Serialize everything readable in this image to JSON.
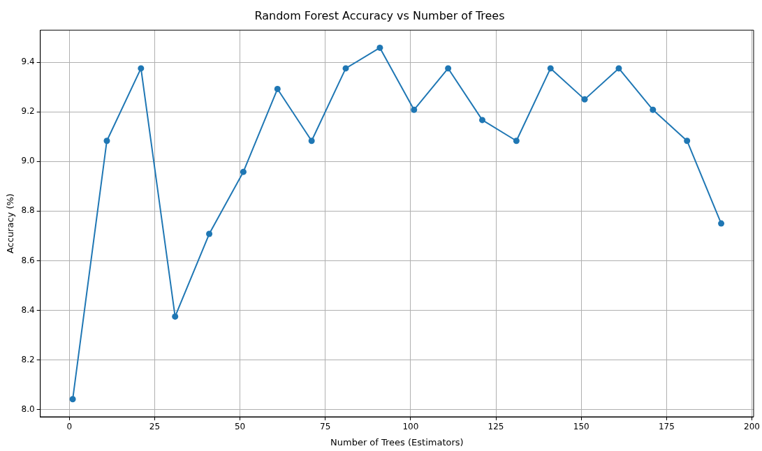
{
  "chart_data": {
    "type": "line",
    "title": "Random Forest Accuracy vs Number of Trees",
    "xlabel": "Number of Trees (Estimators)",
    "ylabel": "Accuracy (%)",
    "x": [
      1,
      11,
      21,
      31,
      41,
      51,
      61,
      71,
      81,
      91,
      101,
      111,
      121,
      131,
      141,
      151,
      161,
      171,
      181,
      191
    ],
    "series": [
      {
        "color": "#1f77b4",
        "values": [
          8.042,
          9.083,
          9.375,
          8.375,
          8.708,
          8.958,
          9.292,
          9.083,
          9.375,
          9.458,
          9.208,
          9.375,
          9.167,
          9.083,
          9.375,
          9.25,
          9.375,
          9.208,
          9.083,
          8.75
        ]
      }
    ],
    "xlim": [
      -8.5,
      200.5
    ],
    "ylim": [
      7.971,
      9.529
    ],
    "xticks": [
      0,
      25,
      50,
      75,
      100,
      125,
      150,
      175,
      200
    ],
    "yticks": [
      {
        "value": 8.0,
        "label": "8.0"
      },
      {
        "value": 8.2,
        "label": "8.2"
      },
      {
        "value": 8.4,
        "label": "8.4"
      },
      {
        "value": 8.6,
        "label": "8.6"
      },
      {
        "value": 8.8,
        "label": "8.8"
      },
      {
        "value": 9.0,
        "label": "9.0"
      },
      {
        "value": 9.2,
        "label": "9.2"
      },
      {
        "value": 9.4,
        "label": "9.4"
      }
    ],
    "grid": true,
    "marker": "circle",
    "line_style": "solid",
    "legend": false
  }
}
